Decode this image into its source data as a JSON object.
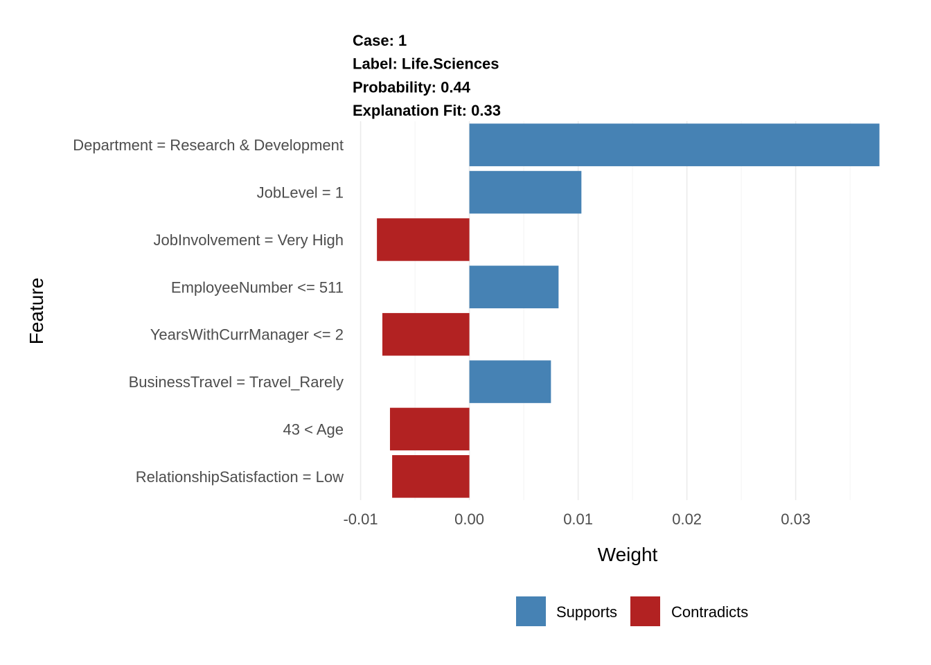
{
  "chart_data": {
    "type": "bar",
    "orientation": "horizontal",
    "title_lines": [
      "Case: 1",
      "Label: Life.Sciences",
      "Probability: 0.44",
      "Explanation Fit: 0.33"
    ],
    "xlabel": "Weight",
    "ylabel": "Feature",
    "xlim": [
      -0.0101,
      0.0376
    ],
    "x_ticks": [
      -0.01,
      0.0,
      0.01,
      0.02,
      0.03
    ],
    "x_tick_labels": [
      "-0.01",
      "0.00",
      "0.01",
      "0.02",
      "0.03"
    ],
    "grid": true,
    "legend_position": "bottom",
    "colors": {
      "Supports": "#4682b4",
      "Contradicts": "#b22222"
    },
    "legend": [
      "Supports",
      "Contradicts"
    ],
    "categories": [
      "Department = Research & Development",
      "JobLevel = 1",
      "JobInvolvement = Very High",
      "EmployeeNumber <= 511",
      "YearsWithCurrManager <= 2",
      "BusinessTravel = Travel_Rarely",
      "43 < Age",
      "RelationshipSatisfaction = Low"
    ],
    "values": [
      0.0377,
      0.0103,
      -0.0085,
      0.0082,
      -0.008,
      0.0075,
      -0.0073,
      -0.0071
    ],
    "groups": [
      "Supports",
      "Supports",
      "Contradicts",
      "Supports",
      "Contradicts",
      "Supports",
      "Contradicts",
      "Contradicts"
    ]
  }
}
